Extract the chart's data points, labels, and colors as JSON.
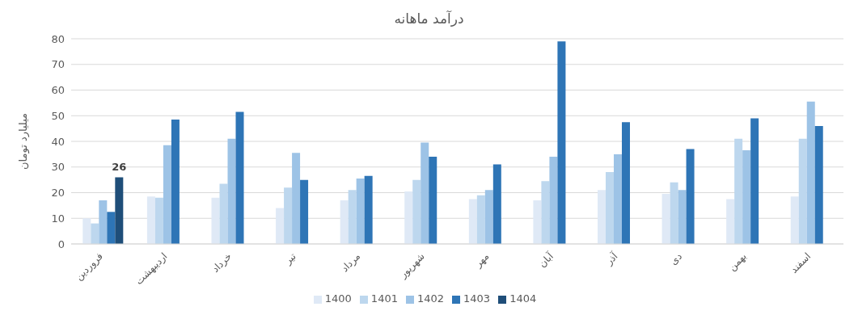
{
  "chart_data": {
    "type": "bar",
    "title": "درآمد ماهانه",
    "ylabel": "میلیارد تومان",
    "categories": [
      "فروردین",
      "اردیبهشت",
      "خرداد",
      "تیر",
      "مرداد",
      "شهریور",
      "مهر",
      "آبان",
      "آذر",
      "دی",
      "بهمن",
      "اسفند"
    ],
    "series": [
      {
        "name": "1400",
        "color": "#dfe9f6",
        "values": [
          10,
          18.5,
          18,
          14,
          17,
          20.5,
          17.5,
          17,
          21,
          19.5,
          17.5,
          18.5
        ]
      },
      {
        "name": "1401",
        "color": "#bdd7ee",
        "values": [
          8,
          18,
          23.5,
          22,
          21,
          25,
          19,
          24.5,
          28,
          24,
          41,
          41
        ]
      },
      {
        "name": "1402",
        "color": "#9dc3e6",
        "values": [
          17,
          38.5,
          41,
          35.5,
          25.5,
          39.5,
          21,
          34,
          35,
          21,
          36.5,
          55.5
        ]
      },
      {
        "name": "1403",
        "color": "#2e75b6",
        "values": [
          12.5,
          48.5,
          51.5,
          25,
          26.5,
          34,
          31,
          79,
          47.5,
          37,
          49,
          46
        ]
      },
      {
        "name": "1404",
        "color": "#1f4e79",
        "values": [
          26,
          null,
          null,
          null,
          null,
          null,
          null,
          null,
          null,
          null,
          null,
          null
        ],
        "value_labels": [
          "26",
          null,
          null,
          null,
          null,
          null,
          null,
          null,
          null,
          null,
          null,
          null
        ]
      }
    ],
    "ylim": [
      0,
      80
    ],
    "yticks": [
      0,
      10,
      20,
      30,
      40,
      50,
      60,
      70,
      80
    ],
    "grid": "y",
    "legend": "bottom"
  }
}
